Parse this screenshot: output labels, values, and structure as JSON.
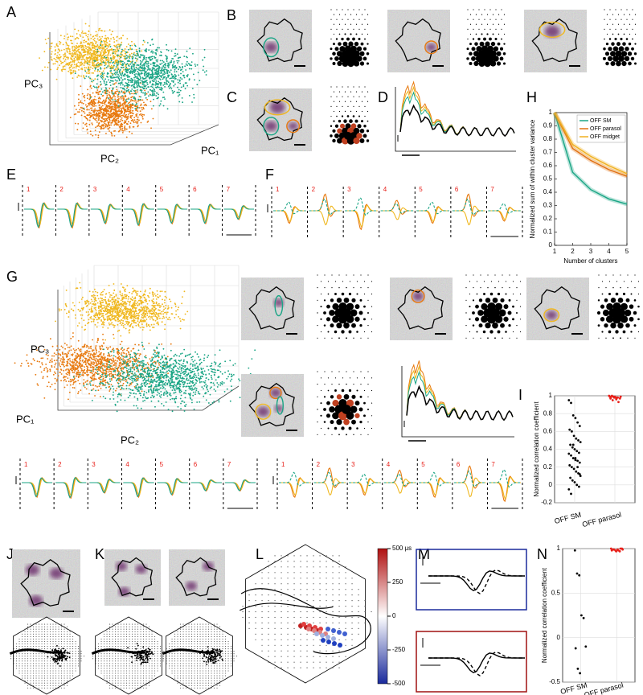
{
  "figure": {
    "panel_labels": [
      "A",
      "B",
      "C",
      "D",
      "E",
      "F",
      "G",
      "H",
      "I",
      "J",
      "K",
      "L",
      "M",
      "N"
    ],
    "axis_labels_a": [
      "PC₃",
      "PC₂",
      "PC₁"
    ],
    "axis_labels_g": [
      "PC₃",
      "PC₁",
      "PC₂"
    ],
    "trace_numbers": [
      "1",
      "2",
      "3",
      "4",
      "5",
      "6",
      "7"
    ]
  },
  "chart_data": [
    {
      "type": "line",
      "y_label": "Normalized sum of within cluster variance",
      "x_label": "Number of clusters",
      "x": [
        1,
        2,
        3,
        4,
        5
      ],
      "xlim": [
        1,
        5
      ],
      "xticks": [
        1,
        2,
        3,
        4,
        5
      ],
      "ylim": [
        0,
        1
      ],
      "yticks": [
        0,
        0.1,
        0.2,
        0.3,
        0.4,
        0.5,
        0.6,
        0.7,
        0.8,
        0.9,
        1
      ],
      "legend": "upper right",
      "series": [
        {
          "name": "OFF SM",
          "color": "#1aa585",
          "values": [
            1,
            0.55,
            0.42,
            0.35,
            0.31
          ]
        },
        {
          "name": "OFF parasol",
          "color": "#e07010",
          "values": [
            1,
            0.73,
            0.64,
            0.57,
            0.52
          ]
        },
        {
          "name": "OFF midget",
          "color": "#f0b020",
          "values": [
            1,
            0.76,
            0.67,
            0.6,
            0.54
          ]
        }
      ]
    },
    {
      "type": "strip",
      "y_label": "Normalized correlation coefficient",
      "categories": [
        "OFF SM",
        "OFF parasol"
      ],
      "ylim": [
        -0.2,
        1
      ],
      "yticks": [
        -0.2,
        0,
        0.2,
        0.4,
        0.6,
        0.8,
        1
      ],
      "grid": true,
      "series": [
        {
          "color": "#000000",
          "values": [
            0.95,
            0.92,
            0.78,
            0.75,
            0.7,
            0.66,
            0.62,
            0.6,
            0.55,
            0.52,
            0.5,
            0.48,
            0.45,
            0.42,
            0.4,
            0.38,
            0.36,
            0.35,
            0.33,
            0.3,
            0.28,
            0.27,
            0.25,
            0.22,
            0.2,
            0.18,
            0.15,
            0.13,
            0.1,
            0.08,
            0.05,
            0.03,
            0,
            -0.02,
            -0.05,
            -0.1,
            0.45,
            0.3,
            0.2,
            0.12
          ]
        },
        {
          "color": "#e8201a",
          "values": [
            1,
            0.99,
            0.99,
            0.98,
            0.98,
            0.97,
            0.99,
            1,
            0.98,
            0.96,
            0.93,
            0.99,
            0.97,
            0.95,
            0.99,
            0.98
          ]
        }
      ]
    },
    {
      "type": "strip",
      "y_label": "Normalized correlation coefficient",
      "categories": [
        "OFF SM",
        "OFF parasol"
      ],
      "ylim": [
        -0.5,
        1
      ],
      "yticks": [
        -0.5,
        0,
        0.5,
        1
      ],
      "grid": true,
      "series": [
        {
          "color": "#000000",
          "values": [
            0.98,
            0.72,
            0.7,
            0.25,
            0.22,
            -0.1,
            -0.12,
            -0.35,
            -0.4
          ]
        },
        {
          "color": "#e8201a",
          "values": [
            1,
            0.99,
            0.98,
            0.99,
            0.97,
            1,
            0.98,
            0.99,
            0.97,
            0.98,
            1,
            0.99
          ]
        }
      ]
    },
    {
      "type": "colorbar",
      "ylim": [
        -500,
        500
      ],
      "yticks": [
        {
          "value": 500,
          "label": "500 μs"
        },
        250,
        0,
        -250,
        -500
      ],
      "colors": [
        "#1a2a9c",
        "#ffffff",
        "#b01010"
      ]
    }
  ]
}
